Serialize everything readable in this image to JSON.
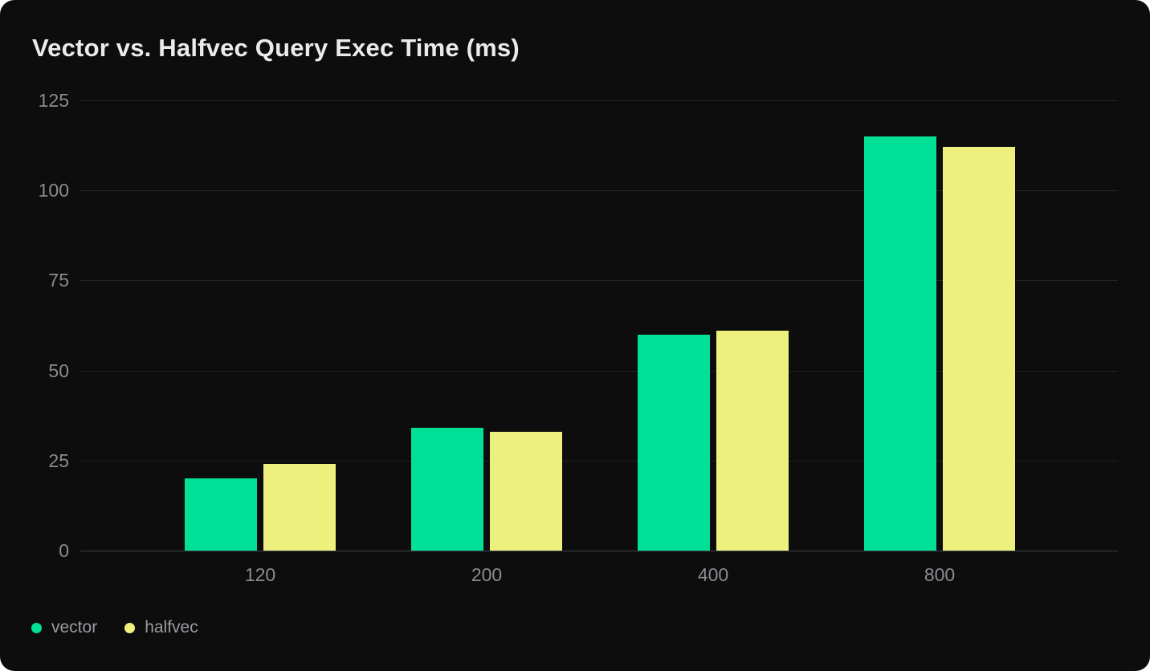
{
  "page": {
    "background": "#ffffff"
  },
  "card": {
    "background": "#0d0d0d"
  },
  "chart_data": {
    "type": "bar",
    "title": "Vector vs. Halfvec Query Exec Time (ms)",
    "categories": [
      "120",
      "200",
      "400",
      "800"
    ],
    "series": [
      {
        "name": "vector",
        "color": "#00e096",
        "values": [
          20,
          34,
          60,
          115
        ]
      },
      {
        "name": "halfvec",
        "color": "#eef07d",
        "values": [
          24,
          33,
          61,
          112
        ]
      }
    ],
    "xlabel": "",
    "ylabel": "",
    "ylim": [
      0,
      125
    ],
    "yticks": [
      0,
      25,
      50,
      75,
      100,
      125
    ],
    "grid": "horizontal",
    "legend_position": "bottom-left"
  },
  "colors": {
    "title": "#ebebeb",
    "tick_label": "#8b8b91",
    "legend_label": "#9b9ba1",
    "gridline": "#232327",
    "axis_line": "#3f4045"
  }
}
